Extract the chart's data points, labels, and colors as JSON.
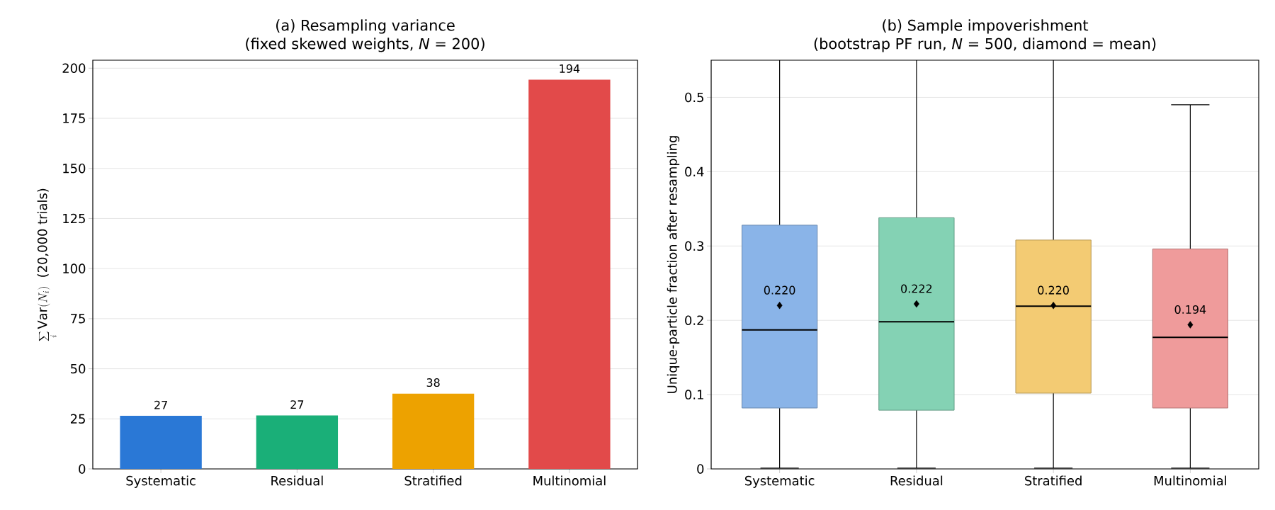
{
  "chart_data": [
    {
      "type": "bar",
      "title": "(a) Resampling variance",
      "subtitle": "(fixed skewed weights, *N* = 200)",
      "ylabel": "\\sum_i \\mathrm{Var}(N_i)\\ \\ \\mbox{(20,000 trials)}",
      "categories": [
        "Systematic",
        "Residual",
        "Stratified",
        "Multinomial"
      ],
      "values": [
        26.5,
        26.7,
        37.6,
        194.3
      ],
      "colors": [
        "#2a78d6",
        "#1aaf78",
        "#eda200",
        "#e24a4a"
      ],
      "value_labels": [
        "27",
        "27",
        "38",
        "194"
      ],
      "ylim": [
        0,
        204
      ],
      "yticks": [
        0,
        25,
        50,
        75,
        100,
        125,
        150,
        175,
        200
      ],
      "grid": "y"
    },
    {
      "type": "box",
      "title": "(b) Sample impoverishment",
      "subtitle": "(bootstrap PF run, *N* = 500, diamond = mean)",
      "ylabel": "Unique-particle fraction after resampling",
      "categories": [
        "Systematic",
        "Residual",
        "Stratified",
        "Multinomial"
      ],
      "boxes": [
        {
          "low": 0.001,
          "q1": 0.082,
          "median": 0.187,
          "q3": 0.328,
          "high": 0.55,
          "mean": 0.22
        },
        {
          "low": 0.001,
          "q1": 0.079,
          "median": 0.198,
          "q3": 0.338,
          "high": 0.55,
          "mean": 0.222
        },
        {
          "low": 0.001,
          "q1": 0.102,
          "median": 0.219,
          "q3": 0.308,
          "high": 0.55,
          "mean": 0.22
        },
        {
          "low": 0.001,
          "q1": 0.082,
          "median": 0.177,
          "q3": 0.296,
          "high": 0.49,
          "mean": 0.194
        }
      ],
      "colors": [
        "#8ab4e8",
        "#84d2b4",
        "#f3cb73",
        "#ef9b9b"
      ],
      "marker": "diamond",
      "annotations": [
        "0.220",
        "0.222",
        "0.220",
        "0.194"
      ],
      "ylim": [
        0,
        0.55
      ],
      "yticks": [
        0,
        0.1,
        0.2,
        0.3,
        0.4,
        0.5
      ],
      "grid": "y"
    }
  ]
}
